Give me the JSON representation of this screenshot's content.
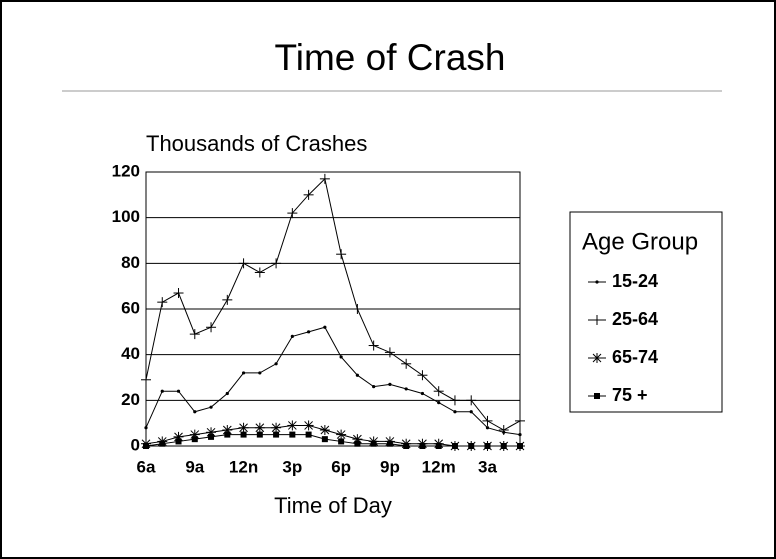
{
  "chart_data": {
    "type": "line",
    "title": "Time of Crash",
    "y_label": "Thousands of Crashes",
    "x_label": "Time of Day",
    "categories": [
      "6a",
      null,
      null,
      "9a",
      null,
      null,
      "12n",
      null,
      null,
      "3p",
      null,
      null,
      "6p",
      null,
      null,
      "9p",
      null,
      null,
      "12m",
      null,
      null,
      "3a",
      null,
      null
    ],
    "series": [
      {
        "name": "15-24",
        "color": "#000000",
        "marker": "dot",
        "values": [
          8,
          24,
          24,
          15,
          17,
          23,
          32,
          32,
          36,
          48,
          50,
          52,
          39,
          31,
          26,
          27,
          25,
          23,
          19,
          15,
          15,
          8,
          6,
          5
        ]
      },
      {
        "name": "25-64",
        "color": "#000000",
        "marker": "plus",
        "values": [
          29,
          63,
          67,
          49,
          52,
          64,
          80,
          76,
          80,
          102,
          110,
          117,
          84,
          60,
          44,
          41,
          36,
          31,
          24,
          20,
          20,
          11,
          7,
          11
        ]
      },
      {
        "name": "65-74",
        "color": "#000000",
        "marker": "star",
        "values": [
          1,
          2,
          4,
          5,
          6,
          7,
          8,
          8,
          8,
          9,
          9,
          7,
          5,
          3,
          2,
          2,
          1,
          1,
          1,
          0,
          0,
          0,
          0,
          0
        ]
      },
      {
        "name": "75 +",
        "color": "#000000",
        "marker": "square",
        "values": [
          0,
          1,
          2,
          3,
          4,
          5,
          5,
          5,
          5,
          5,
          5,
          3,
          2,
          1,
          1,
          1,
          0,
          0,
          0,
          0,
          0,
          0,
          0,
          0
        ]
      }
    ],
    "ylim": [
      0,
      120
    ],
    "yticks": [
      0,
      20,
      40,
      60,
      80,
      100,
      120
    ],
    "grid": true,
    "legend_title": "Age Group",
    "legend": "right"
  }
}
